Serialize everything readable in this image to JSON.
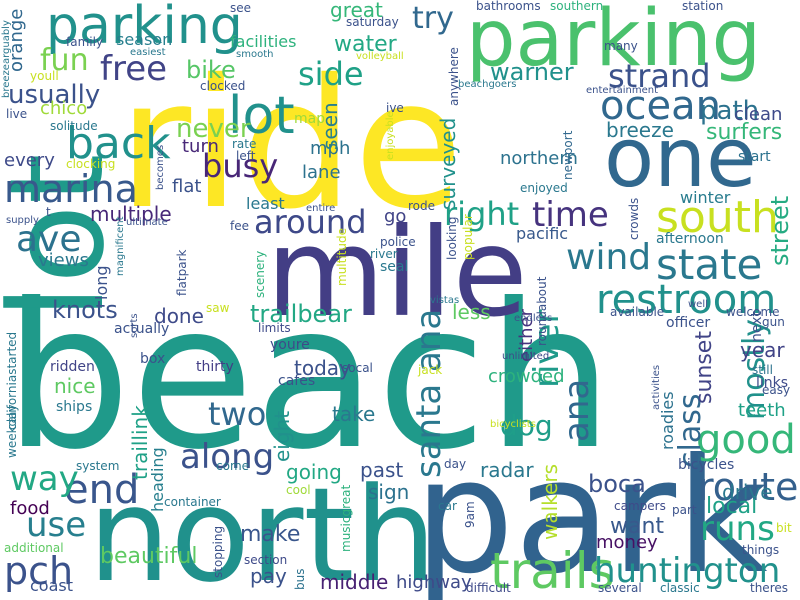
{
  "words": [
    {
      "text": "beach",
      "color": "#1f9a8a"
    },
    {
      "text": "ride",
      "color": "#fde725"
    },
    {
      "text": "park",
      "color": "#31638e"
    },
    {
      "text": "north",
      "color": "#20918c"
    },
    {
      "text": "mile",
      "color": "#433e85"
    },
    {
      "text": "lot",
      "color": "#1f9a8a"
    },
    {
      "text": "parking",
      "color": "#4ac16d"
    },
    {
      "text": "parking",
      "color": "#21918c"
    },
    {
      "text": "one",
      "color": "#31688e"
    },
    {
      "text": "lot",
      "color": "#21918c"
    },
    {
      "text": "south",
      "color": "#c8e020"
    },
    {
      "text": "state",
      "color": "#2a788e"
    },
    {
      "text": "restroom",
      "color": "#21918c"
    },
    {
      "text": "trails",
      "color": "#5ec962"
    },
    {
      "text": "huntington",
      "color": "#21918c"
    },
    {
      "text": "route",
      "color": "#34608d"
    },
    {
      "text": "good",
      "color": "#35b779"
    },
    {
      "text": "end",
      "color": "#39568c"
    },
    {
      "text": "ocean",
      "color": "#31688e"
    },
    {
      "text": "strand",
      "color": "#3b528b"
    },
    {
      "text": "back",
      "color": "#21918c"
    },
    {
      "text": "marina",
      "color": "#38598c"
    },
    {
      "text": "ave",
      "color": "#2c728e"
    },
    {
      "text": "pch",
      "color": "#3b528b"
    },
    {
      "text": "use",
      "color": "#277f8e"
    },
    {
      "text": "fun",
      "color": "#7ad151"
    },
    {
      "text": "free",
      "color": "#414487"
    },
    {
      "text": "time",
      "color": "#46337e"
    },
    {
      "text": "wind",
      "color": "#2a788e"
    },
    {
      "text": "busy",
      "color": "#482677"
    },
    {
      "text": "around",
      "color": "#3e4989"
    },
    {
      "text": "along",
      "color": "#3b528b"
    },
    {
      "text": "two",
      "color": "#31688e"
    },
    {
      "text": "runs",
      "color": "#22a884"
    },
    {
      "text": "way",
      "color": "#22a884"
    },
    {
      "text": "right",
      "color": "#1fa187"
    },
    {
      "text": "side",
      "color": "#1fa187"
    },
    {
      "text": "santa",
      "color": "#2a788e"
    },
    {
      "text": "ana",
      "color": "#2a788e"
    },
    {
      "text": "river",
      "color": "#1f9a8a"
    },
    {
      "text": "ana",
      "color": "#31688e"
    },
    {
      "text": "class",
      "color": "#31688e"
    },
    {
      "text": "mostly",
      "color": "#21918c"
    },
    {
      "text": "beautiful",
      "color": "#5ec962"
    },
    {
      "text": "trailbear",
      "color": "#22a884"
    },
    {
      "text": "multiple",
      "color": "#482878"
    },
    {
      "text": "warner",
      "color": "#21918c"
    },
    {
      "text": "usually",
      "color": "#3b528b"
    },
    {
      "text": "bike",
      "color": "#56c667"
    },
    {
      "text": "never",
      "color": "#7ad151"
    },
    {
      "text": "path",
      "color": "#2c728e"
    },
    {
      "text": "surfers",
      "color": "#35b779"
    },
    {
      "text": "breeze",
      "color": "#2a788e"
    },
    {
      "text": "knots",
      "color": "#3b528b"
    },
    {
      "text": "water",
      "color": "#22a884"
    },
    {
      "text": "try",
      "color": "#31688e"
    },
    {
      "text": "dog",
      "color": "#1f9e89"
    },
    {
      "text": "sunset",
      "color": "#414487"
    },
    {
      "text": "local",
      "color": "#1fa187"
    },
    {
      "text": "make",
      "color": "#39568c"
    },
    {
      "text": "pay",
      "color": "#3b528b"
    },
    {
      "text": "middle",
      "color": "#482173"
    },
    {
      "text": "highway",
      "color": "#3e4a89"
    },
    {
      "text": "drive",
      "color": "#2a788e"
    },
    {
      "text": "year",
      "color": "#414487"
    },
    {
      "text": "street",
      "color": "#25ab82"
    },
    {
      "text": "crowded",
      "color": "#2db27d"
    },
    {
      "text": "walkers",
      "color": "#b5de2b"
    },
    {
      "text": "want",
      "color": "#38598c"
    },
    {
      "text": "money",
      "color": "#471164"
    },
    {
      "text": "boca",
      "color": "#3b528b"
    },
    {
      "text": "radar",
      "color": "#2a788e"
    },
    {
      "text": "sign",
      "color": "#2c728e"
    },
    {
      "text": "past",
      "color": "#3b528b"
    },
    {
      "text": "going",
      "color": "#22a884"
    },
    {
      "text": "eight",
      "color": "#21918c"
    },
    {
      "text": "today",
      "color": "#3b528b"
    },
    {
      "text": "take",
      "color": "#2a788e"
    },
    {
      "text": "less",
      "color": "#5ec962"
    },
    {
      "text": "either",
      "color": "#46337e"
    },
    {
      "text": "roadies",
      "color": "#2c728e"
    },
    {
      "text": "teeth",
      "color": "#1fa187"
    },
    {
      "text": "nice",
      "color": "#5ec962"
    },
    {
      "text": "food",
      "color": "#440154"
    },
    {
      "text": "traillink",
      "color": "#1fa187"
    },
    {
      "text": "heading",
      "color": "#277f8e"
    },
    {
      "text": "done",
      "color": "#3e4a89"
    },
    {
      "text": "views",
      "color": "#2a788e"
    },
    {
      "text": "long",
      "color": "#3b528b"
    },
    {
      "text": "mph",
      "color": "#2c728e"
    },
    {
      "text": "lane",
      "color": "#2c728e"
    },
    {
      "text": "seen",
      "color": "#277f8e"
    },
    {
      "text": "surveyed",
      "color": "#21918c"
    },
    {
      "text": "northern",
      "color": "#2c728e"
    },
    {
      "text": "turn",
      "color": "#482878"
    },
    {
      "text": "flat",
      "color": "#3b528b"
    },
    {
      "text": "every",
      "color": "#3e4a89"
    },
    {
      "text": "chico",
      "color": "#a0da39"
    },
    {
      "text": "season",
      "color": "#277f8e"
    },
    {
      "text": "facilities",
      "color": "#2db27d"
    },
    {
      "text": "great",
      "color": "#35b779"
    },
    {
      "text": "clean",
      "color": "#3e4a89"
    },
    {
      "text": "winter",
      "color": "#287c8e"
    },
    {
      "text": "start",
      "color": "#2c728e"
    },
    {
      "text": "afternoon",
      "color": "#2a788e"
    },
    {
      "text": "pacific",
      "color": "#38598c"
    },
    {
      "text": "go",
      "color": "#414487"
    },
    {
      "text": "least",
      "color": "#2a788e"
    },
    {
      "text": "next",
      "color": "#3b528b"
    },
    {
      "text": "orange",
      "color": "#31688e"
    },
    {
      "text": "coast",
      "color": "#3b528b"
    },
    {
      "text": "system",
      "color": "#2a788e"
    },
    {
      "text": "bicycles",
      "color": "#3b528b"
    },
    {
      "text": "links",
      "color": "#3e4a89"
    },
    {
      "text": "still",
      "color": "#2c728e"
    },
    {
      "text": "officer",
      "color": "#3b528b"
    },
    {
      "text": "thirty",
      "color": "#433e85"
    },
    {
      "text": "cafes",
      "color": "#3b528b"
    },
    {
      "text": "youre",
      "color": "#3e4a89"
    },
    {
      "text": "ridden",
      "color": "#414487"
    },
    {
      "text": "box",
      "color": "#3b528b"
    },
    {
      "text": "ships",
      "color": "#2a788e"
    },
    {
      "text": "actually",
      "color": "#3b528b"
    },
    {
      "text": "section",
      "color": "#3e4a89"
    },
    {
      "text": "bus",
      "color": "#2c728e"
    },
    {
      "text": "several",
      "color": "#3b528b"
    },
    {
      "text": "classic",
      "color": "#2a788e"
    },
    {
      "text": "theres",
      "color": "#3b528b"
    },
    {
      "text": "difficult",
      "color": "#3e4a89"
    },
    {
      "text": "things",
      "color": "#3b528b"
    },
    {
      "text": "car",
      "color": "#2a788e"
    },
    {
      "text": "9am",
      "color": "#3b528b"
    },
    {
      "text": "day",
      "color": "#3b528b"
    },
    {
      "text": "come",
      "color": "#2a788e"
    },
    {
      "text": "cool",
      "color": "#a0da39"
    },
    {
      "text": "additional",
      "color": "#5ec962"
    },
    {
      "text": "container",
      "color": "#2a788e"
    },
    {
      "text": "part",
      "color": "#3b528b"
    },
    {
      "text": "campers",
      "color": "#3e4a89"
    },
    {
      "text": "bit",
      "color": "#c8e020"
    },
    {
      "text": "easy",
      "color": "#3b528b"
    },
    {
      "text": "saw",
      "color": "#c8e020"
    },
    {
      "text": "limits",
      "color": "#3e4a89"
    },
    {
      "text": "police",
      "color": "#3b528b"
    },
    {
      "text": "river",
      "color": "#2a788e"
    },
    {
      "text": "seal",
      "color": "#2a788e"
    },
    {
      "text": "jack",
      "color": "#c8e020"
    },
    {
      "text": "socal",
      "color": "#3b528b"
    },
    {
      "text": "unlimited",
      "color": "#3e4a89"
    },
    {
      "text": "bicyclists",
      "color": "#c8e020"
    },
    {
      "text": "vistas",
      "color": "#2a788e"
    },
    {
      "text": "endless",
      "color": "#3b528b"
    },
    {
      "text": "welcome",
      "color": "#3b528b"
    },
    {
      "text": "gun",
      "color": "#3b528b"
    },
    {
      "text": "available",
      "color": "#3b528b"
    },
    {
      "text": "enjoyed",
      "color": "#2a788e"
    },
    {
      "text": "entertainment",
      "color": "#3b528b"
    },
    {
      "text": "beachgoers",
      "color": "#2a788e"
    },
    {
      "text": "bathrooms",
      "color": "#3b528b"
    },
    {
      "text": "southern",
      "color": "#2db27d"
    },
    {
      "text": "station",
      "color": "#3b528b"
    },
    {
      "text": "see",
      "color": "#3b528b"
    },
    {
      "text": "saturday",
      "color": "#3b528b"
    },
    {
      "text": "volleyball",
      "color": "#c8e020"
    },
    {
      "text": "many",
      "color": "#3b528b"
    },
    {
      "text": "ive",
      "color": "#3b528b"
    },
    {
      "text": "family",
      "color": "#3b528b"
    },
    {
      "text": "easiest",
      "color": "#2a788e"
    },
    {
      "text": "smooth",
      "color": "#2a788e"
    },
    {
      "text": "clocked",
      "color": "#3b528b"
    },
    {
      "text": "youll",
      "color": "#c8e020"
    },
    {
      "text": "live",
      "color": "#3b528b"
    },
    {
      "text": "solitude",
      "color": "#2a788e"
    },
    {
      "text": "clocking",
      "color": "#c8e020"
    },
    {
      "text": "map",
      "color": "#a0da39"
    },
    {
      "text": "rate",
      "color": "#2a788e"
    },
    {
      "text": "left",
      "color": "#3b528b"
    },
    {
      "text": "becomes",
      "color": "#3b528b"
    },
    {
      "text": "ultimate",
      "color": "#3b528b"
    },
    {
      "text": "supply",
      "color": "#3b528b"
    },
    {
      "text": "fee",
      "color": "#3b528b"
    },
    {
      "text": "entire",
      "color": "#3b528b"
    },
    {
      "text": "rode",
      "color": "#3b528b"
    },
    {
      "text": "crowds",
      "color": "#3b528b"
    },
    {
      "text": "t",
      "color": "#3b528b"
    },
    {
      "text": "breezearguably",
      "color": "#2a788e"
    },
    {
      "text": "anywhere",
      "color": "#3b528b"
    },
    {
      "text": "newport",
      "color": "#31688e"
    },
    {
      "text": "enjoyable",
      "color": "#c8e020"
    },
    {
      "text": "popular",
      "color": "#c8e020"
    },
    {
      "text": "roundabout",
      "color": "#3b528b"
    },
    {
      "text": "looking",
      "color": "#3b528b"
    },
    {
      "text": "multitude",
      "color": "#c8e020"
    },
    {
      "text": "scenery",
      "color": "#2db27d"
    },
    {
      "text": "flatpark",
      "color": "#3b528b"
    },
    {
      "text": "magnificent",
      "color": "#2a788e"
    },
    {
      "text": "sorts",
      "color": "#3b528b"
    },
    {
      "text": "californiastarted",
      "color": "#2a788e"
    },
    {
      "text": "weekday",
      "color": "#2a788e"
    },
    {
      "text": "musicgreat",
      "color": "#2db27d"
    },
    {
      "text": "stopping",
      "color": "#3b528b"
    },
    {
      "text": "activities",
      "color": "#3b528b"
    },
    {
      "text": "well",
      "color": "#3b528b"
    }
  ]
}
